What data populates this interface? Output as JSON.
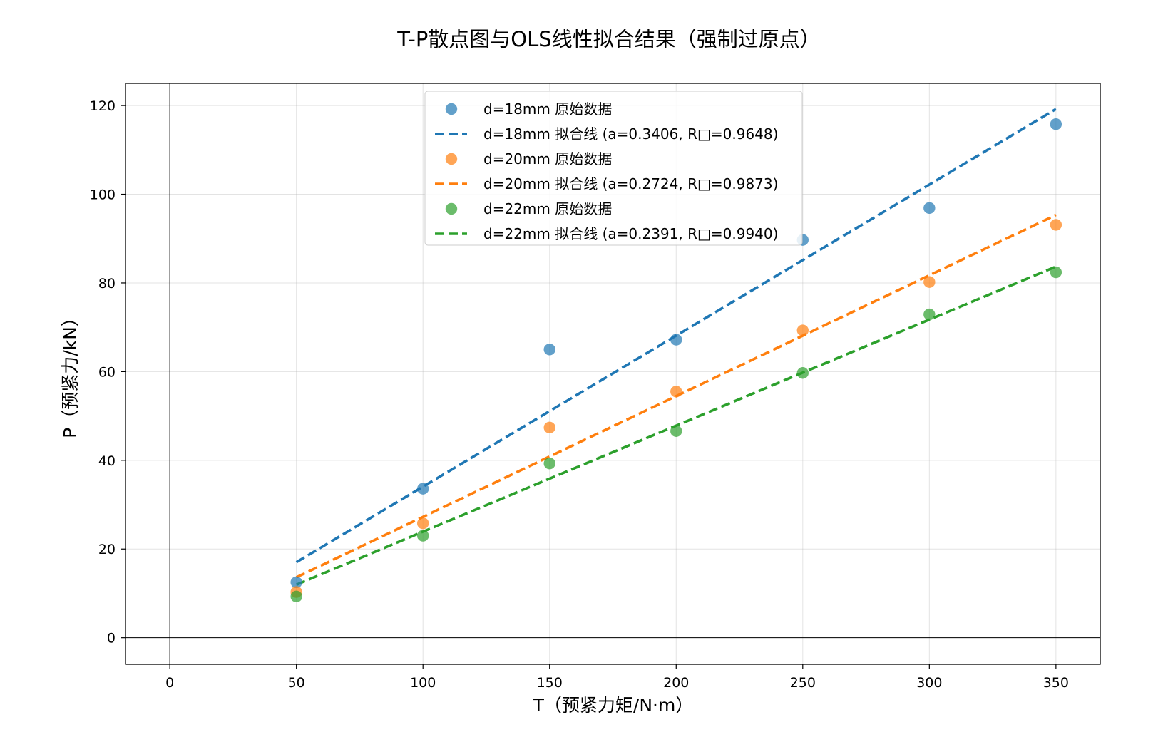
{
  "chart_data": {
    "type": "scatter",
    "title": "T-P散点图与OLS线性拟合结果（强制过原点）",
    "xlabel": "T（预紧力矩/N·m）",
    "ylabel": "P（预紧力/kN）",
    "xlim": [
      -17.5,
      367.5
    ],
    "ylim": [
      -6,
      125
    ],
    "xticks": [
      0,
      50,
      100,
      150,
      200,
      250,
      300,
      350
    ],
    "yticks": [
      0,
      20,
      40,
      60,
      80,
      100,
      120
    ],
    "grid": true,
    "zero_lines": true,
    "legend_position": "top-center",
    "x": [
      50,
      100,
      150,
      200,
      250,
      300,
      350
    ],
    "series": [
      {
        "name": "d=18mm 原始数据",
        "kind": "scatter",
        "color": "#1f77b4",
        "values": [
          12.5,
          33.6,
          65.0,
          67.2,
          89.7,
          96.9,
          115.8
        ]
      },
      {
        "name": "d=18mm 拟合线 (a=0.3406, R□=0.9648)",
        "kind": "fit",
        "color": "#1f77b4",
        "slope": 0.3406,
        "x_range": [
          50,
          350
        ]
      },
      {
        "name": "d=20mm 原始数据",
        "kind": "scatter",
        "color": "#ff7f0e",
        "values": [
          10.3,
          25.8,
          47.4,
          55.5,
          69.3,
          80.2,
          93.1
        ]
      },
      {
        "name": "d=20mm 拟合线 (a=0.2724, R□=0.9873)",
        "kind": "fit",
        "color": "#ff7f0e",
        "slope": 0.2724,
        "x_range": [
          50,
          350
        ]
      },
      {
        "name": "d=22mm 原始数据",
        "kind": "scatter",
        "color": "#2ca02c",
        "values": [
          9.3,
          23.0,
          39.3,
          46.6,
          59.7,
          72.9,
          82.4
        ]
      },
      {
        "name": "d=22mm 拟合线 (a=0.2391, R□=0.9940)",
        "kind": "fit",
        "color": "#2ca02c",
        "slope": 0.2391,
        "x_range": [
          50,
          350
        ]
      }
    ]
  }
}
